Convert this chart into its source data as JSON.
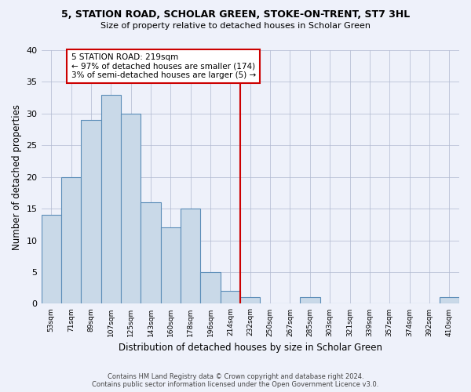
{
  "title": "5, STATION ROAD, SCHOLAR GREEN, STOKE-ON-TRENT, ST7 3HL",
  "subtitle": "Size of property relative to detached houses in Scholar Green",
  "xlabel": "Distribution of detached houses by size in Scholar Green",
  "ylabel": "Number of detached properties",
  "bin_labels": [
    "53sqm",
    "71sqm",
    "89sqm",
    "107sqm",
    "125sqm",
    "143sqm",
    "160sqm",
    "178sqm",
    "196sqm",
    "214sqm",
    "232sqm",
    "250sqm",
    "267sqm",
    "285sqm",
    "303sqm",
    "321sqm",
    "339sqm",
    "357sqm",
    "374sqm",
    "392sqm",
    "410sqm"
  ],
  "bar_values": [
    14,
    20,
    29,
    33,
    30,
    16,
    12,
    15,
    5,
    2,
    1,
    0,
    0,
    1,
    0,
    0,
    0,
    0,
    0,
    0,
    1
  ],
  "bar_color": "#c9d9e8",
  "bar_edge_color": "#5b8db8",
  "bar_edge_width": 0.8,
  "annotation_text": "5 STATION ROAD: 219sqm\n← 97% of detached houses are smaller (174)\n3% of semi-detached houses are larger (5) →",
  "annotation_box_color": "#ffffff",
  "annotation_box_edge": "#cc0000",
  "vline_color": "#cc0000",
  "grid_color": "#b0b8d0",
  "background_color": "#eef1fa",
  "ylim": [
    0,
    40
  ],
  "yticks": [
    0,
    5,
    10,
    15,
    20,
    25,
    30,
    35,
    40
  ],
  "footer_line1": "Contains HM Land Registry data © Crown copyright and database right 2024.",
  "footer_line2": "Contains public sector information licensed under the Open Government Licence v3.0.",
  "vline_bin_index": 9,
  "n_bins": 21
}
